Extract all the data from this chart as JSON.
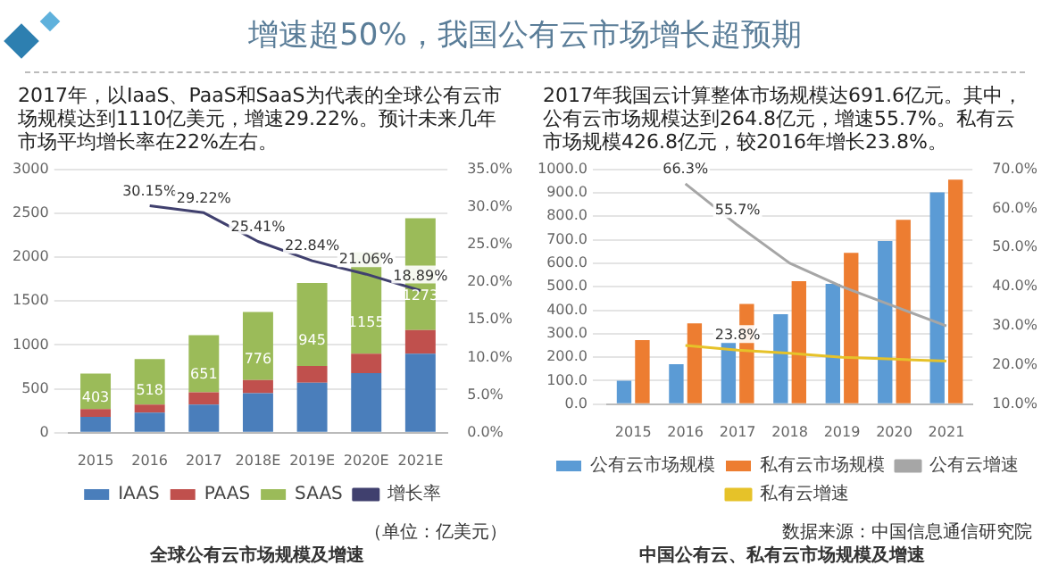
{
  "chart_data": [
    {
      "type": "bar",
      "title": "增速超50%，我国公有云市场增长超预期",
      "subtitle": "2017年，以IaaS、PaaS和SaaS为代表的全球公有云市场规模达到1110亿美元，增速29.22%。预计未来几年市场平均增长率在22%左右。",
      "categories": [
        "2015",
        "2016",
        "2017",
        "2018E",
        "2019E",
        "2020E",
        "2021E"
      ],
      "stacked": true,
      "series": [
        {
          "name": "IAAS",
          "color": "#4a7ebb",
          "values": [
            180,
            230,
            320,
            450,
            570,
            680,
            900
          ]
        },
        {
          "name": "PAAS",
          "color": "#c0504d",
          "values": [
            90,
            90,
            140,
            150,
            190,
            220,
            270
          ]
        },
        {
          "name": "SAAS",
          "color": "#9bbb59",
          "values": [
            403,
            518,
            651,
            776,
            945,
            1155,
            1273
          ],
          "value_labels": [
            "403",
            "518",
            "651",
            "776",
            "945",
            "1155",
            "1273"
          ]
        },
        {
          "name": "增长率",
          "type": "line",
          "axis": "y2",
          "color": "#40406e",
          "values": [
            null,
            30.15,
            29.22,
            25.41,
            22.84,
            21.06,
            18.89
          ],
          "value_labels": [
            null,
            "30.15%",
            "29.22%",
            "25.41%",
            "22.84%",
            "21.06%",
            "18.89%"
          ]
        }
      ],
      "ylim": [
        0,
        3000
      ],
      "yticks": [
        0,
        500,
        1000,
        1500,
        2000,
        2500,
        3000
      ],
      "y2lim": [
        0,
        35
      ],
      "y2ticks": [
        {
          "value": 0,
          "label": "0.0%"
        },
        {
          "value": 5,
          "label": "5.0%"
        },
        {
          "value": 10,
          "label": "10.0%"
        },
        {
          "value": 15,
          "label": "15.0%"
        },
        {
          "value": 20,
          "label": "20.0%"
        },
        {
          "value": 25,
          "label": "25.0%"
        },
        {
          "value": 30,
          "label": "30.0%"
        },
        {
          "value": 35,
          "label": "35.0%"
        }
      ],
      "grid": "y",
      "legend": "bottom",
      "marker": "none",
      "annotations": [
        "（单位：亿美元）",
        "全球公有云市场规模及增速"
      ]
    },
    {
      "type": "bar",
      "subtitle": "2017年我国云计算整体市场规模达691.6亿元。其中，公有云市场规模达到264.8亿元，增速55.7%。私有云市场规模426.8亿元，较2016年增长23.8%。",
      "categories": [
        "2015",
        "2016",
        "2017",
        "2018",
        "2019",
        "2020",
        "2021"
      ],
      "series": [
        {
          "name": "公有云市场规模",
          "color": "#5b9bd5",
          "values": [
            100,
            170,
            262,
            383,
            512,
            695,
            902
          ]
        },
        {
          "name": "私有云市场规模",
          "color": "#ed7d31",
          "values": [
            273,
            344,
            427,
            524,
            644,
            785,
            956
          ]
        },
        {
          "name": "公有云增速",
          "type": "line",
          "axis": "y2",
          "color": "#a6a6a6",
          "values": [
            null,
            66.3,
            55.7,
            46,
            40,
            35,
            30
          ],
          "value_labels": [
            null,
            "66.3%",
            "55.7%",
            null,
            null,
            null,
            null
          ]
        },
        {
          "name": "私有云增速",
          "type": "line",
          "axis": "y2",
          "color": "#e6c229",
          "values": [
            null,
            25,
            23.8,
            23,
            22,
            21.5,
            21
          ],
          "value_labels": [
            null,
            null,
            "23.8%",
            null,
            null,
            null,
            null
          ]
        }
      ],
      "ylim": [
        0,
        1000
      ],
      "yticks": [
        {
          "value": 0,
          "label": "0.0"
        },
        {
          "value": 100,
          "label": "100.0"
        },
        {
          "value": 200,
          "label": "200.0"
        },
        {
          "value": 300,
          "label": "300.0"
        },
        {
          "value": 400,
          "label": "400.0"
        },
        {
          "value": 500,
          "label": "500.0"
        },
        {
          "value": 600,
          "label": "600.0"
        },
        {
          "value": 700,
          "label": "700.0"
        },
        {
          "value": 800,
          "label": "800.0"
        },
        {
          "value": 900,
          "label": "900.0"
        },
        {
          "value": 1000,
          "label": "1000.0"
        }
      ],
      "y2lim": [
        10,
        70
      ],
      "y2ticks": [
        {
          "value": 10,
          "label": "10.0%"
        },
        {
          "value": 20,
          "label": "20.0%"
        },
        {
          "value": 30,
          "label": "30.0%"
        },
        {
          "value": 40,
          "label": "40.0%"
        },
        {
          "value": 50,
          "label": "50.0%"
        },
        {
          "value": 60,
          "label": "60.0%"
        },
        {
          "value": 70,
          "label": "70.0%"
        }
      ],
      "grid": "y",
      "legend": "bottom",
      "marker": "none",
      "annotations": [
        "数据来源：中国信息通信研究院",
        "中国公有云、私有云市场规模及增速"
      ]
    }
  ]
}
